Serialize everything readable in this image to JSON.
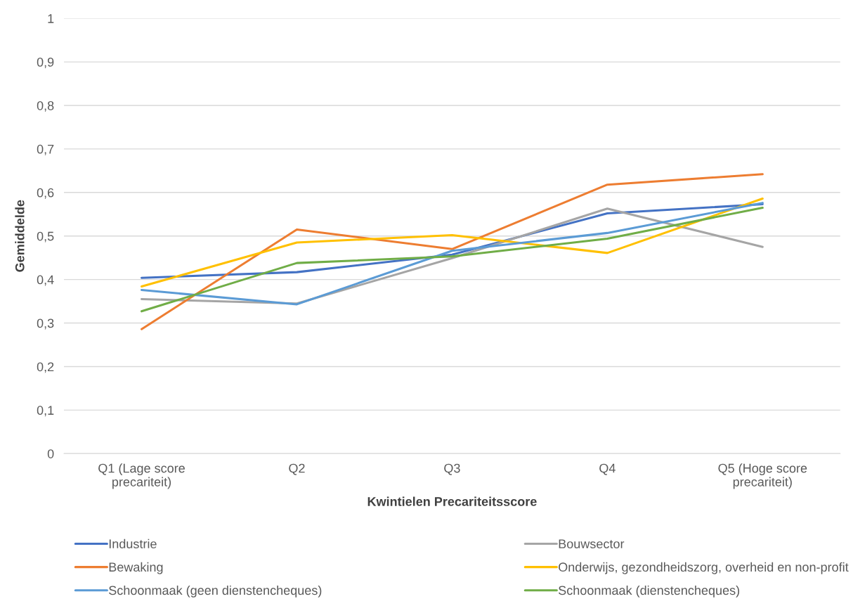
{
  "chart_data": {
    "type": "line",
    "xlabel": "Kwintielen Precariteitsscore",
    "ylabel": "Gemiddelde",
    "categories": [
      "Q1 (Lage score\nprecariteit)",
      "Q2",
      "Q3",
      "Q4",
      "Q5 (Hoge score\nprecariteit)"
    ],
    "series": [
      {
        "name": "Industrie",
        "color": "#4472c4",
        "values": [
          0.404,
          0.417,
          0.457,
          0.552,
          0.573
        ]
      },
      {
        "name": "Bouwsector",
        "color": "#a5a5a5",
        "values": [
          0.355,
          0.345,
          0.449,
          0.563,
          0.475
        ]
      },
      {
        "name": "Bewaking",
        "color": "#ed7d31",
        "values": [
          0.286,
          0.515,
          0.47,
          0.618,
          0.642
        ]
      },
      {
        "name": "Onderwijs, gezondheidszorg, overheid en non-profit",
        "color": "#ffc000",
        "values": [
          0.384,
          0.485,
          0.502,
          0.461,
          0.586
        ]
      },
      {
        "name": "Schoonmaak (geen dienstencheques)",
        "color": "#5b9bd5",
        "values": [
          0.376,
          0.343,
          0.466,
          0.507,
          0.576
        ]
      },
      {
        "name": "Schoonmaak (dienstencheques)",
        "color": "#70ad47",
        "values": [
          0.327,
          0.438,
          0.453,
          0.494,
          0.565
        ]
      }
    ],
    "ylim": [
      0,
      1
    ],
    "yticks": [
      0,
      {
        "value": 0.1,
        "label": "0,1"
      },
      {
        "value": 0.2,
        "label": "0,2"
      },
      {
        "value": 0.3,
        "label": "0,3"
      },
      {
        "value": 0.4,
        "label": "0,4"
      },
      {
        "value": 0.5,
        "label": "0,5"
      },
      {
        "value": 0.6,
        "label": "0,6"
      },
      {
        "value": 0.7,
        "label": "0,7"
      },
      {
        "value": 0.8,
        "label": "0,8"
      },
      {
        "value": 0.9,
        "label": "0,9"
      },
      1
    ],
    "grid": "y",
    "legend": "bottom",
    "marker": "none",
    "line_style": "solid"
  }
}
